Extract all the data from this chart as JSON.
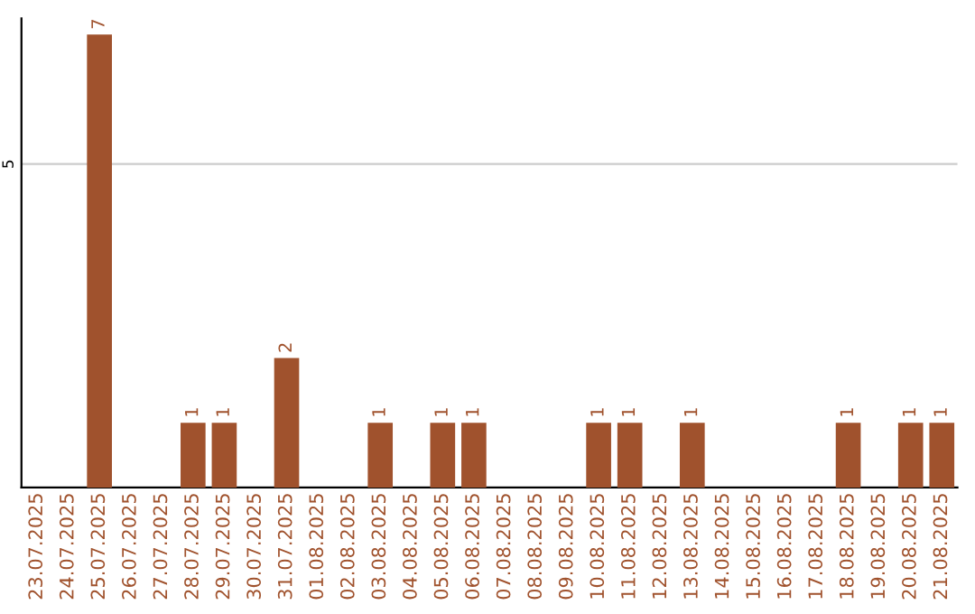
{
  "chart_data": {
    "type": "bar",
    "categories": [
      "23.07.2025",
      "24.07.2025",
      "25.07.2025",
      "26.07.2025",
      "27.07.2025",
      "28.07.2025",
      "29.07.2025",
      "30.07.2025",
      "31.07.2025",
      "01.08.2025",
      "02.08.2025",
      "03.08.2025",
      "04.08.2025",
      "05.08.2025",
      "06.08.2025",
      "07.08.2025",
      "08.08.2025",
      "09.08.2025",
      "10.08.2025",
      "11.08.2025",
      "12.08.2025",
      "13.08.2025",
      "14.08.2025",
      "15.08.2025",
      "16.08.2025",
      "17.08.2025",
      "18.08.2025",
      "19.08.2025",
      "20.08.2025",
      "21.08.2025"
    ],
    "values": [
      0,
      0,
      7,
      0,
      0,
      1,
      1,
      0,
      2,
      0,
      0,
      1,
      0,
      1,
      1,
      0,
      0,
      0,
      1,
      1,
      0,
      1,
      0,
      0,
      0,
      0,
      1,
      0,
      1,
      1
    ],
    "value_labels": [
      null,
      null,
      "7",
      null,
      null,
      "1",
      "1",
      null,
      "2",
      null,
      null,
      "1",
      null,
      "1",
      "1",
      null,
      null,
      null,
      "1",
      "1",
      null,
      "1",
      null,
      null,
      null,
      null,
      "1",
      null,
      "1",
      "1"
    ],
    "color": "#a0522d",
    "ylim": [
      0,
      7.25
    ],
    "yticks": [
      5
    ],
    "grid": "y"
  }
}
